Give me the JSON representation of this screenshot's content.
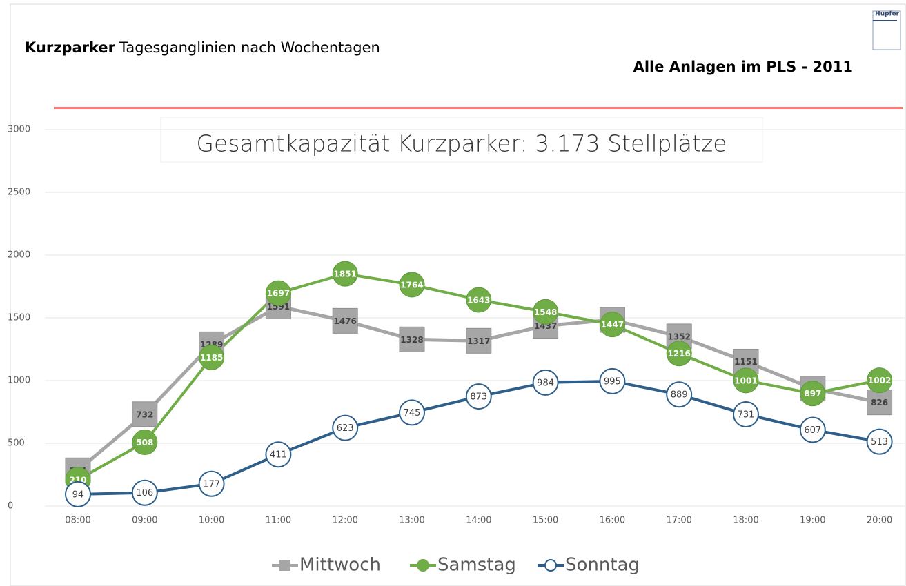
{
  "chart_data": {
    "type": "line",
    "title_bold": "Kurzparker",
    "title_rest": "Tagesganglinien nach Wochentagen",
    "subtitle_right": "Alle Anlagen im PLS - 2011",
    "logo": "Hupfer",
    "annotation": "Gesamtkapazität Kurzparker: 3.173 Stellplätze",
    "capacity_line": {
      "value": 3173,
      "color": "#e00000"
    },
    "categories": [
      "08:00",
      "09:00",
      "10:00",
      "11:00",
      "12:00",
      "13:00",
      "14:00",
      "15:00",
      "16:00",
      "17:00",
      "18:00",
      "19:00",
      "20:00"
    ],
    "series": [
      {
        "name": "Mittwoch",
        "color": "#a6a6a6",
        "marker": "square",
        "values": [
          284,
          732,
          1289,
          1591,
          1476,
          1328,
          1317,
          1437,
          1484,
          1352,
          1151,
          936,
          826
        ]
      },
      {
        "name": "Samstag",
        "color": "#70ad47",
        "marker": "circle",
        "values": [
          210,
          508,
          1185,
          1697,
          1851,
          1764,
          1643,
          1548,
          1447,
          1216,
          1001,
          897,
          1002
        ]
      },
      {
        "name": "Sonntag",
        "color": "#2e5f8a",
        "marker": "open-circle",
        "values": [
          94,
          106,
          177,
          411,
          623,
          745,
          873,
          984,
          995,
          889,
          731,
          607,
          513
        ]
      }
    ],
    "ylim": [
      0,
      3000
    ],
    "yticks": [
      0,
      500,
      1000,
      1500,
      2000,
      2500,
      3000
    ],
    "grid": true,
    "legend": "bottom"
  }
}
